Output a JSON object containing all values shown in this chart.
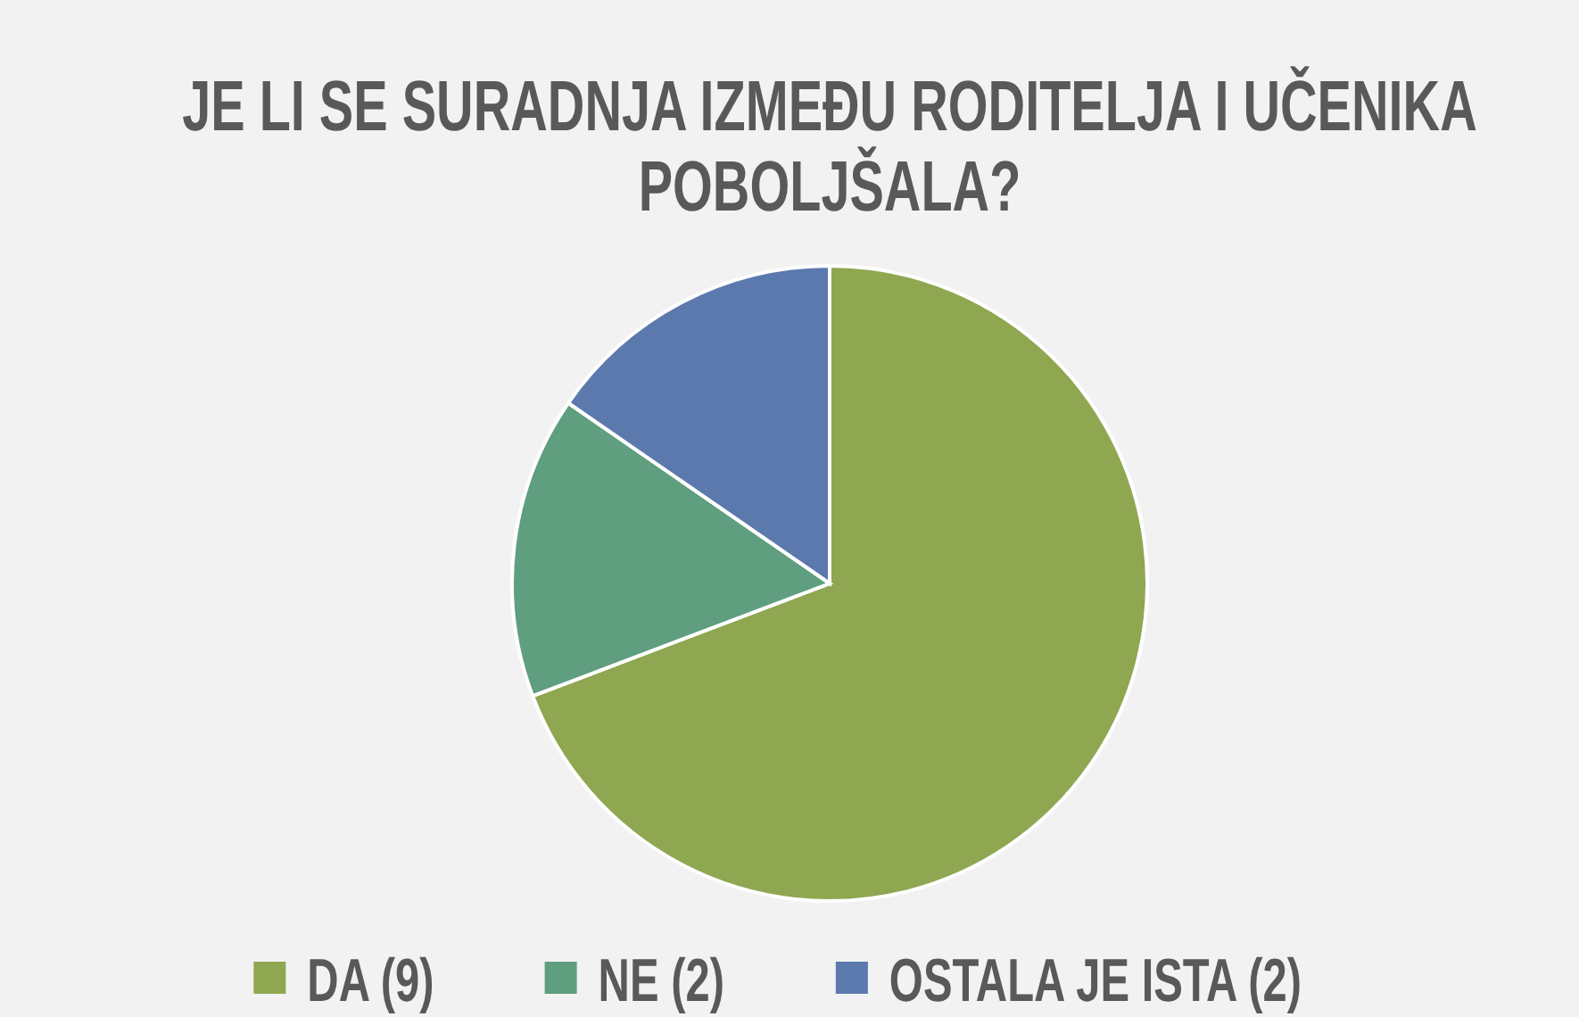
{
  "chart_data": {
    "type": "pie",
    "title": "JE LI SE SURADNJA IZMEĐU RODITELJA I UČENIKA POBOLJŠALA?",
    "categories": [
      "DA (9)",
      "NE (2)",
      "OSTALA JE ISTA (2)"
    ],
    "values": [
      9,
      2,
      2
    ],
    "colors": [
      "#8fa751",
      "#5f9e7f",
      "#5b79ad"
    ],
    "legend": "bottom"
  }
}
